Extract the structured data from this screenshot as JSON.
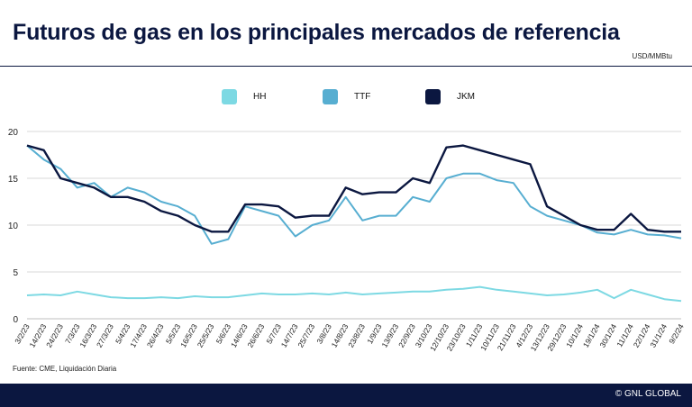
{
  "header": {
    "title": "Futuros de gas en los principales mercados de referencia",
    "unit": "USD/MMBtu"
  },
  "footer": {
    "source": "Fuente: CME, Liquidación Diaria",
    "copyright": "© GNL GLOBAL"
  },
  "colors": {
    "title": "#0b1740",
    "footer_bg": "#0b1740",
    "hh": "#7dd9e3",
    "ttf": "#57aed1",
    "jkm": "#0b1740"
  },
  "chart_data": {
    "type": "line",
    "xlabel": "",
    "ylabel": "",
    "ylim": [
      0,
      20
    ],
    "yticks": [
      0,
      5,
      10,
      15,
      20
    ],
    "grid": "horizontal",
    "legend_position": "top",
    "x_tick_labels": [
      "3/2/23",
      "14/2/23",
      "24/2/23",
      "7/3/23",
      "16/3/23",
      "27/3/23",
      "5/4/23",
      "17/4/23",
      "26/4/23",
      "5/5/23",
      "16/5/23",
      "25/5/23",
      "5/6/23",
      "14/6/23",
      "26/6/23",
      "5/7/23",
      "14/7/23",
      "25/7/23",
      "3/8/23",
      "14/8/23",
      "23/8/23",
      "1/9/23",
      "13/9/23",
      "22/9/23",
      "3/10/23",
      "12/10/23",
      "23/10/23",
      "1/11/23",
      "10/11/23",
      "21/11/23",
      "4/12/23",
      "13/12/23",
      "29/12/23",
      "10/1/24",
      "19/1/24",
      "30/1/24",
      "11/1/24",
      "22/1/24",
      "31/1/24",
      "9/2/24"
    ],
    "x": [
      0,
      1,
      2,
      3,
      4,
      5,
      6,
      7,
      8,
      9,
      10,
      11,
      12,
      13,
      14,
      15,
      16,
      17,
      18,
      19,
      20,
      21,
      22,
      23,
      24,
      25,
      26,
      27,
      28,
      29,
      30,
      31,
      32,
      33,
      34,
      35,
      36,
      37,
      38,
      39
    ],
    "series": [
      {
        "name": "HH",
        "color": "#7dd9e3",
        "values": [
          2.5,
          2.6,
          2.5,
          2.9,
          2.6,
          2.3,
          2.2,
          2.2,
          2.3,
          2.2,
          2.4,
          2.3,
          2.3,
          2.5,
          2.7,
          2.6,
          2.6,
          2.7,
          2.6,
          2.8,
          2.6,
          2.7,
          2.8,
          2.9,
          2.9,
          3.1,
          3.2,
          3.4,
          3.1,
          2.9,
          2.7,
          2.5,
          2.6,
          2.8,
          3.1,
          2.2,
          3.1,
          2.6,
          2.1,
          1.9
        ]
      },
      {
        "name": "TTF",
        "color": "#57aed1",
        "values": [
          18.5,
          17.0,
          16.0,
          14.0,
          14.5,
          13.0,
          14.0,
          13.5,
          12.5,
          12.0,
          11.0,
          8.0,
          8.5,
          12.0,
          11.5,
          11.0,
          8.8,
          10.0,
          10.5,
          13.0,
          10.5,
          11.0,
          11.0,
          13.0,
          12.5,
          15.0,
          15.5,
          15.5,
          14.8,
          14.5,
          12.0,
          11.0,
          10.5,
          10.0,
          9.2,
          9.0,
          9.5,
          9.0,
          8.9,
          8.6
        ]
      },
      {
        "name": "JKM",
        "color": "#0b1740",
        "values": [
          18.5,
          18.0,
          15.0,
          14.5,
          14.0,
          13.0,
          13.0,
          12.5,
          11.5,
          11.0,
          10.0,
          9.3,
          9.3,
          12.2,
          12.2,
          12.0,
          10.8,
          11.0,
          11.0,
          14.0,
          13.3,
          13.5,
          13.5,
          15.0,
          14.5,
          18.3,
          18.5,
          18.0,
          17.5,
          17.0,
          16.5,
          12.0,
          11.0,
          10.0,
          9.5,
          9.5,
          11.2,
          9.5,
          9.3,
          9.3
        ]
      }
    ]
  }
}
